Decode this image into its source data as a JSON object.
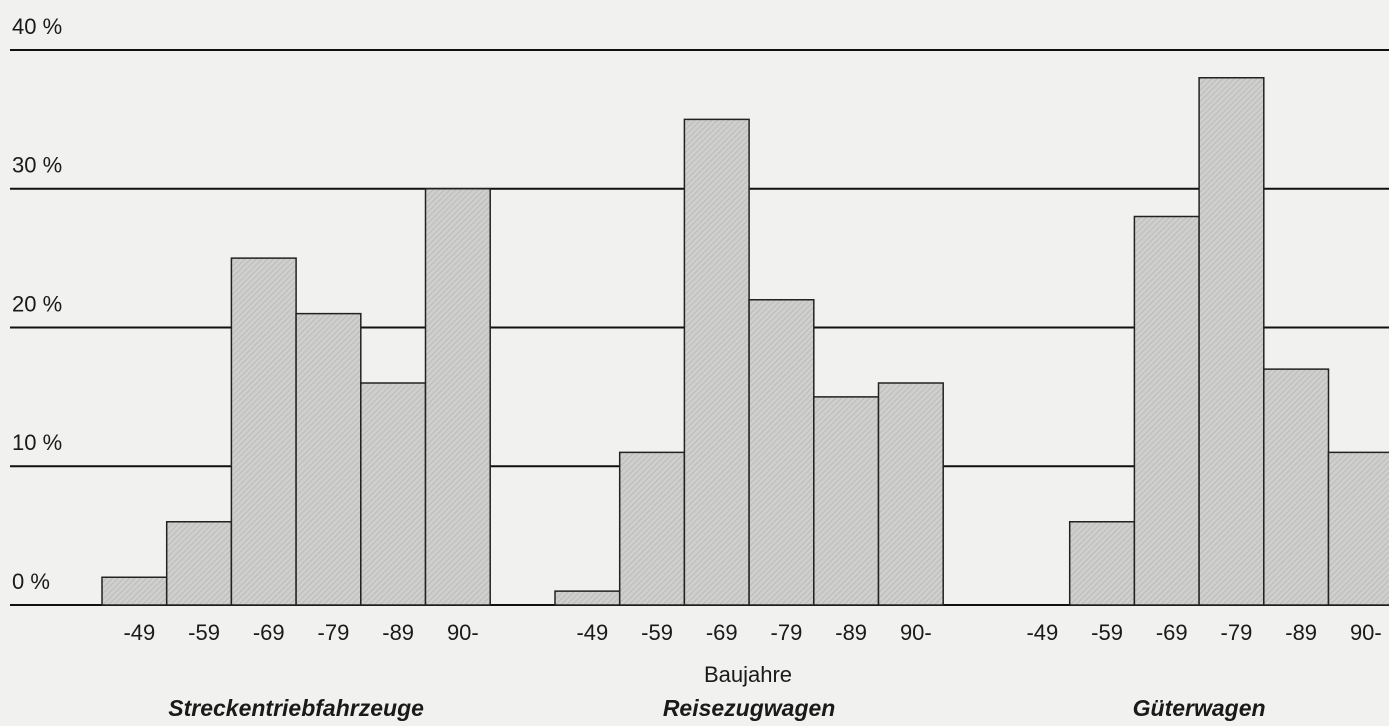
{
  "chart_data": {
    "type": "bar",
    "x_label": "Baujahre",
    "categories": [
      "-49",
      "-59",
      "-69",
      "-79",
      "-89",
      "90-"
    ],
    "groups": [
      {
        "name": "Streckentriebfahrzeuge",
        "values": [
          2,
          6,
          25,
          21,
          16,
          30
        ]
      },
      {
        "name": "Reisezugwagen",
        "values": [
          1,
          11,
          35,
          22,
          15,
          16
        ]
      },
      {
        "name": "Güterwagen",
        "values": [
          0,
          6,
          28,
          38,
          17,
          11
        ]
      }
    ],
    "color": "#c8c8c6",
    "ylim": [
      0,
      40
    ],
    "yticks": [
      {
        "value": 0,
        "label": "0 %"
      },
      {
        "value": 10,
        "label": "10 %"
      },
      {
        "value": 20,
        "label": "20 %"
      },
      {
        "value": 30,
        "label": "30 %"
      },
      {
        "value": 40,
        "label": "40 %"
      }
    ],
    "grid": true
  }
}
